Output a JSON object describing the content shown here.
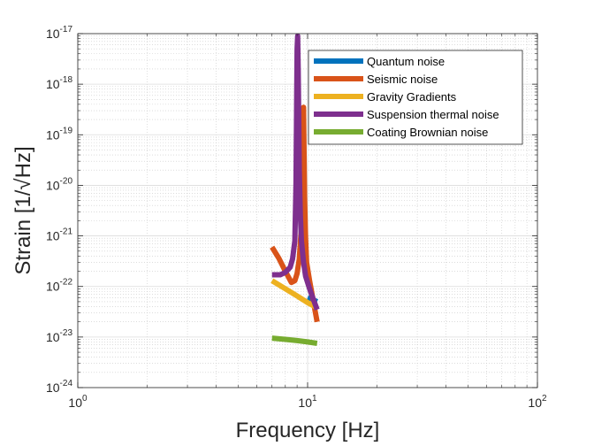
{
  "chart_data": {
    "type": "line",
    "title": "",
    "xlabel": "Frequency [Hz]",
    "ylabel": "Strain [1/√Hz]",
    "x_scale": "log",
    "y_scale": "log",
    "xlim": [
      1,
      100
    ],
    "ylim": [
      1e-24,
      1e-17
    ],
    "grid": true,
    "minor_grid": true,
    "legend_position": "top-right",
    "x_ticks": [
      {
        "value": 1,
        "base": "10",
        "exp": "0"
      },
      {
        "value": 10,
        "base": "10",
        "exp": "1"
      },
      {
        "value": 100,
        "base": "10",
        "exp": "2"
      }
    ],
    "y_ticks": [
      {
        "value": 1e-24,
        "base": "10",
        "exp": "-24"
      },
      {
        "value": 1e-23,
        "base": "10",
        "exp": "-23"
      },
      {
        "value": 1e-22,
        "base": "10",
        "exp": "-22"
      },
      {
        "value": 1e-21,
        "base": "10",
        "exp": "-21"
      },
      {
        "value": 1e-20,
        "base": "10",
        "exp": "-20"
      },
      {
        "value": 1e-19,
        "base": "10",
        "exp": "-19"
      },
      {
        "value": 1e-18,
        "base": "10",
        "exp": "-18"
      },
      {
        "value": 1e-17,
        "base": "10",
        "exp": "-17"
      }
    ],
    "series": [
      {
        "name": "Quantum noise",
        "color": "#0072BD",
        "x": [
          10.0,
          10.5,
          11.0
        ],
        "y": [
          6e-23,
          5.5e-23,
          5e-23
        ]
      },
      {
        "name": "Seismic noise",
        "color": "#D95319",
        "x": [
          7.0,
          7.5,
          8.0,
          8.5,
          8.8,
          9.0,
          9.2,
          9.4,
          9.5,
          9.6,
          9.7,
          9.8,
          9.9,
          10.2,
          10.6,
          11.0
        ],
        "y": [
          6e-22,
          3.6e-22,
          2e-22,
          1.2e-22,
          1.3e-22,
          1.8e-22,
          3.5e-22,
          1.5e-21,
          4e-20,
          3.5e-19,
          6e-21,
          9e-22,
          3e-22,
          1.3e-22,
          5e-23,
          2e-23
        ]
      },
      {
        "name": "Gravity Gradients",
        "color": "#EDB120",
        "x": [
          7.0,
          8.0,
          9.0,
          10.0,
          11.0
        ],
        "y": [
          1.3e-22,
          9e-23,
          6.5e-23,
          4.8e-23,
          3.8e-23
        ]
      },
      {
        "name": "Suspension thermal noise",
        "color": "#7E2F8E",
        "x": [
          7.0,
          7.6,
          8.0,
          8.4,
          8.6,
          8.8,
          8.9,
          9.0,
          9.05,
          9.1,
          9.2,
          9.3,
          9.4,
          9.6,
          9.8,
          10.2,
          10.6,
          11.0
        ],
        "y": [
          1.7e-22,
          1.7e-22,
          1.9e-22,
          2.4e-22,
          3.5e-22,
          8e-22,
          1e-20,
          5e-18,
          9e-18,
          2e-18,
          2e-20,
          2.5e-21,
          8e-22,
          3e-22,
          1.6e-22,
          9e-23,
          5.5e-23,
          3.5e-23
        ]
      },
      {
        "name": "Coating Brownian noise",
        "color": "#77AC30",
        "x": [
          7.0,
          8.0,
          9.0,
          10.0,
          11.0
        ],
        "y": [
          9.5e-24,
          9e-24,
          8.5e-24,
          8e-24,
          7.5e-24
        ]
      }
    ]
  }
}
